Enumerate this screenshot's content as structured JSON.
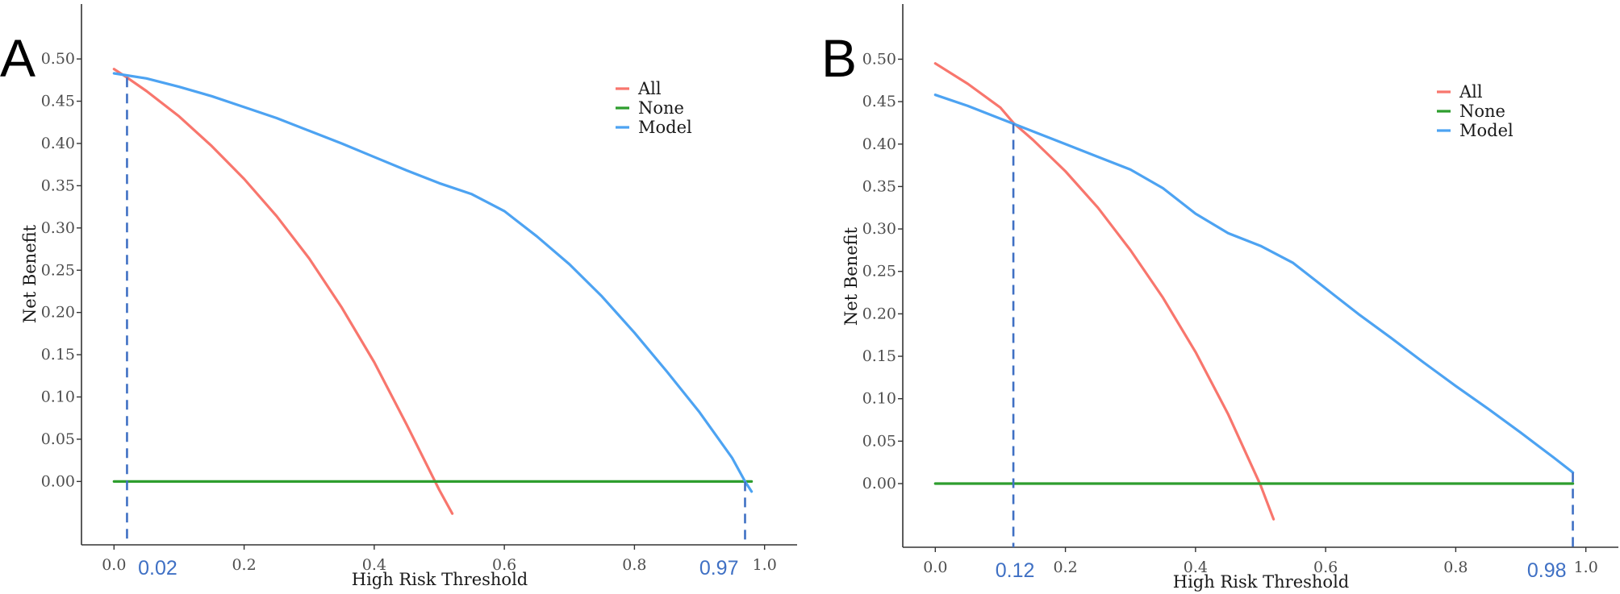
{
  "colors": {
    "all": "#F8766D",
    "none": "#2E9E2E",
    "model": "#4DA3F2",
    "threshold": "#3F70C4"
  },
  "chart_data": [
    {
      "type": "line",
      "panel_label": "A",
      "xlabel": "High Risk Threshold",
      "ylabel": "Net Benefit",
      "xlim": [
        -0.05,
        1.05
      ],
      "ylim": [
        -0.075,
        0.565
      ],
      "x_ticks": [
        0.0,
        0.2,
        0.4,
        0.6,
        0.8,
        1.0
      ],
      "x_tick_labels": [
        "0.0",
        "0.2",
        "0.4",
        "0.6",
        "0.8",
        "1.0"
      ],
      "y_ticks": [
        0,
        0.05,
        0.1,
        0.15,
        0.2,
        0.25,
        0.3,
        0.35,
        0.4,
        0.45,
        0.5
      ],
      "y_tick_labels": [
        "0.00",
        "0.05",
        "0.10",
        "0.15",
        "0.20",
        "0.25",
        "0.30",
        "0.35",
        "0.40",
        "0.45",
        "0.50"
      ],
      "legend": [
        "All",
        "None",
        "Model"
      ],
      "legend_position": "top-right",
      "series": [
        {
          "name": "All",
          "x": [
            0.0,
            0.02,
            0.05,
            0.1,
            0.15,
            0.2,
            0.25,
            0.3,
            0.35,
            0.4,
            0.45,
            0.5,
            0.52
          ],
          "y": [
            0.488,
            0.478,
            0.462,
            0.432,
            0.397,
            0.358,
            0.314,
            0.264,
            0.206,
            0.141,
            0.067,
            -0.01,
            -0.038
          ]
        },
        {
          "name": "None",
          "x": [
            0.0,
            0.98
          ],
          "y": [
            0.0,
            0.0
          ]
        },
        {
          "name": "Model",
          "x": [
            0.0,
            0.05,
            0.1,
            0.15,
            0.2,
            0.25,
            0.3,
            0.35,
            0.4,
            0.45,
            0.5,
            0.55,
            0.6,
            0.65,
            0.7,
            0.75,
            0.8,
            0.85,
            0.9,
            0.95,
            0.97,
            0.98
          ],
          "y": [
            0.483,
            0.477,
            0.467,
            0.456,
            0.443,
            0.43,
            0.415,
            0.4,
            0.384,
            0.368,
            0.353,
            0.34,
            0.32,
            0.29,
            0.257,
            0.219,
            0.176,
            0.13,
            0.082,
            0.028,
            0.0,
            -0.012
          ]
        }
      ],
      "thresholds": [
        {
          "x": 0.02,
          "y": 0.478,
          "label": "0.02"
        },
        {
          "x": 0.97,
          "y": 0.0,
          "label": "0.97"
        }
      ]
    },
    {
      "type": "line",
      "panel_label": "B",
      "xlabel": "High Risk Threshold",
      "ylabel": "Net Benefit",
      "xlim": [
        -0.05,
        1.05
      ],
      "ylim": [
        -0.075,
        0.565
      ],
      "x_ticks": [
        0.0,
        0.2,
        0.4,
        0.6,
        0.8,
        1.0
      ],
      "x_tick_labels": [
        "0.0",
        "0.2",
        "0.4",
        "0.6",
        "0.8",
        "1.0"
      ],
      "y_ticks": [
        0,
        0.05,
        0.1,
        0.15,
        0.2,
        0.25,
        0.3,
        0.35,
        0.4,
        0.45,
        0.5
      ],
      "y_tick_labels": [
        "0.00",
        "0.05",
        "0.10",
        "0.15",
        "0.20",
        "0.25",
        "0.30",
        "0.35",
        "0.40",
        "0.45",
        "0.50"
      ],
      "legend": [
        "All",
        "None",
        "Model"
      ],
      "legend_position": "top-right",
      "series": [
        {
          "name": "All",
          "x": [
            0.0,
            0.05,
            0.1,
            0.12,
            0.15,
            0.2,
            0.25,
            0.3,
            0.35,
            0.4,
            0.45,
            0.5,
            0.52
          ],
          "y": [
            0.495,
            0.471,
            0.443,
            0.425,
            0.405,
            0.368,
            0.325,
            0.275,
            0.219,
            0.155,
            0.082,
            -0.002,
            -0.042
          ]
        },
        {
          "name": "None",
          "x": [
            0.0,
            0.98
          ],
          "y": [
            0.0,
            0.0
          ]
        },
        {
          "name": "Model",
          "x": [
            0.0,
            0.05,
            0.1,
            0.12,
            0.15,
            0.2,
            0.25,
            0.3,
            0.35,
            0.4,
            0.45,
            0.5,
            0.55,
            0.6,
            0.65,
            0.7,
            0.75,
            0.8,
            0.85,
            0.9,
            0.95,
            0.98
          ],
          "y": [
            0.458,
            0.445,
            0.43,
            0.424,
            0.415,
            0.4,
            0.385,
            0.37,
            0.348,
            0.318,
            0.295,
            0.28,
            0.26,
            0.23,
            0.2,
            0.172,
            0.143,
            0.115,
            0.088,
            0.06,
            0.031,
            0.013
          ]
        }
      ],
      "thresholds": [
        {
          "x": 0.12,
          "y": 0.424,
          "label": "0.12"
        },
        {
          "x": 0.98,
          "y": 0.013,
          "label": "0.98"
        }
      ]
    }
  ]
}
